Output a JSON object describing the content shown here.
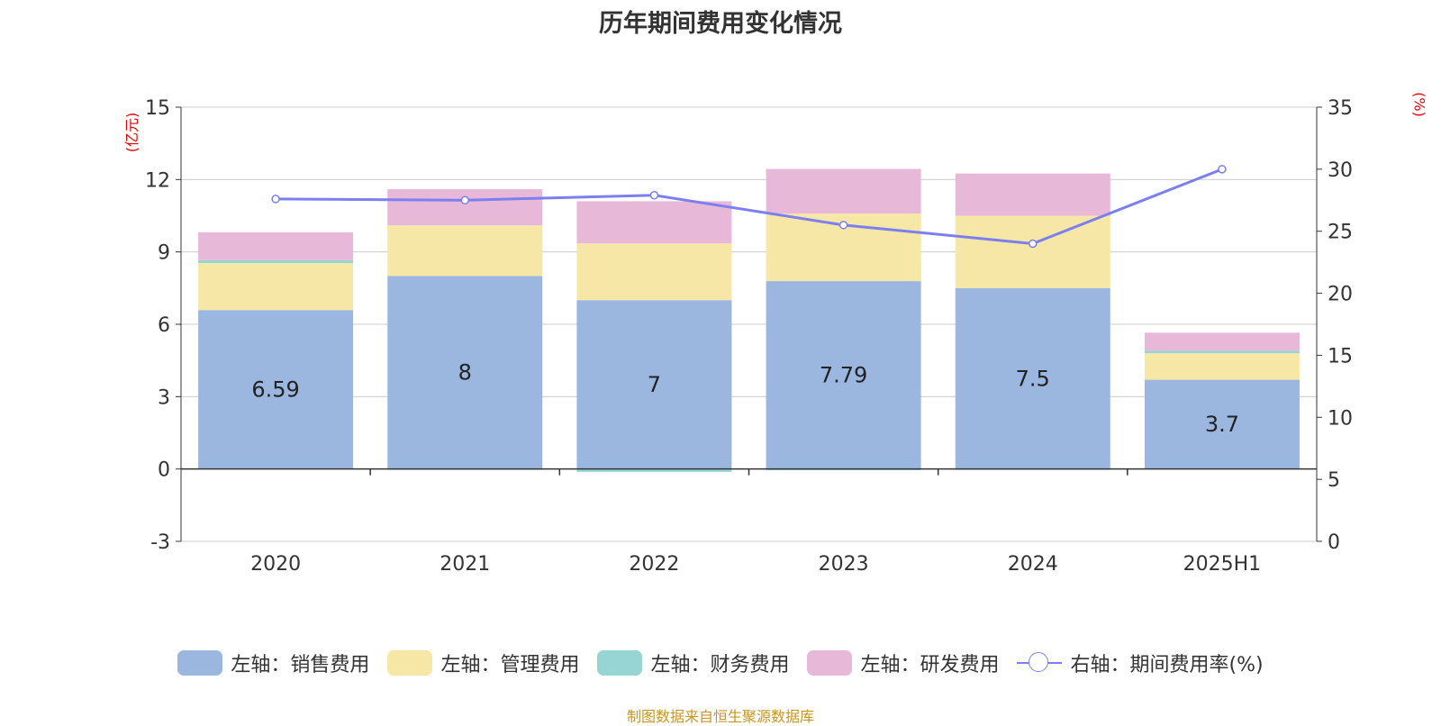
{
  "chart_data": {
    "type": "bar",
    "title": "历年期间费用变化情况",
    "left_axis_unit": "(亿元)",
    "right_axis_unit": "(%)",
    "categories": [
      "2020",
      "2021",
      "2022",
      "2023",
      "2024",
      "2025H1"
    ],
    "left_ylim": [
      -3,
      15
    ],
    "left_ticks": [
      "-3",
      "0",
      "3",
      "6",
      "9",
      "12",
      "15"
    ],
    "right_ylim": [
      0,
      35
    ],
    "right_ticks": [
      "0",
      "5",
      "10",
      "15",
      "20",
      "25",
      "30",
      "35"
    ],
    "grid": true,
    "stacked": true,
    "series": [
      {
        "name": "左轴：销售费用",
        "color": "#9bb7e0",
        "axis": "left",
        "type": "bar",
        "values": [
          6.59,
          8,
          7,
          7.79,
          7.5,
          3.7
        ],
        "labels": [
          "6.59",
          "8",
          "7",
          "7.79",
          "7.5",
          "3.7"
        ]
      },
      {
        "name": "左轴：管理费用",
        "color": "#f7e7a6",
        "axis": "left",
        "type": "bar",
        "values": [
          1.95,
          2.1,
          2.35,
          2.8,
          3.0,
          1.1
        ]
      },
      {
        "name": "左轴：财务费用",
        "color": "#96d5d4",
        "axis": "left",
        "type": "bar",
        "values": [
          0.12,
          -0.02,
          -0.12,
          -0.05,
          -0.02,
          0.1
        ]
      },
      {
        "name": "左轴：研发费用",
        "color": "#e8b8d8",
        "axis": "left",
        "type": "bar",
        "values": [
          1.15,
          1.5,
          1.75,
          1.85,
          1.75,
          0.75
        ]
      },
      {
        "name": "右轴：期间费用率(%)",
        "color": "#7b7ff0",
        "axis": "right",
        "type": "line",
        "values": [
          27.6,
          27.5,
          27.9,
          25.5,
          24.0,
          30.0
        ]
      }
    ],
    "legend_position": "bottom"
  },
  "source": "制图数据来自恒生聚源数据库"
}
